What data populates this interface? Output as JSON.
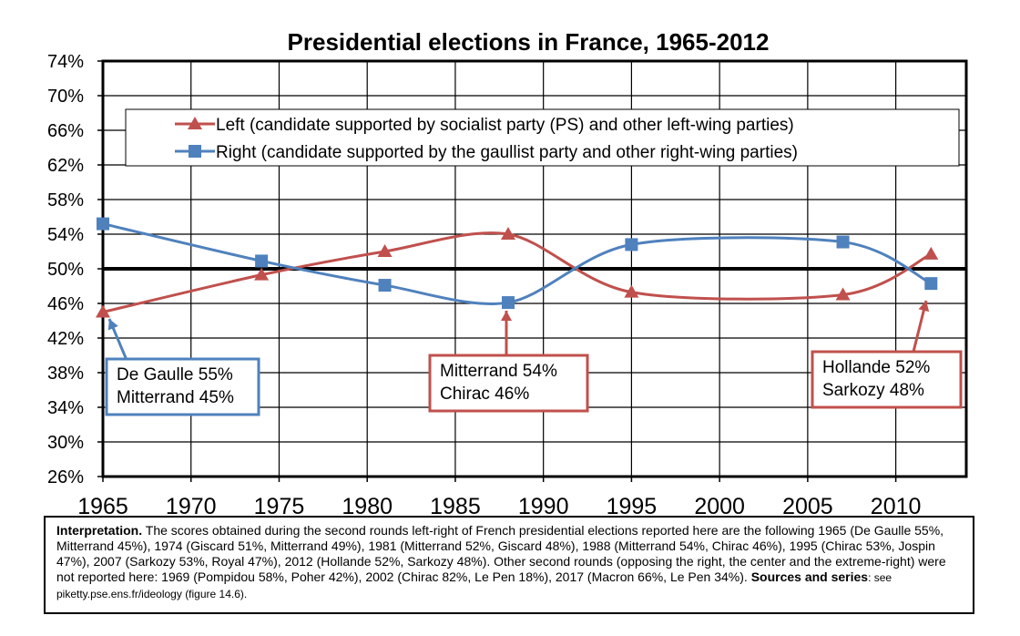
{
  "chart_data": {
    "type": "line",
    "title": "Presidential elections in France, 1965-2012",
    "xlabel": "",
    "ylabel": "",
    "xlim": [
      1965,
      2014
    ],
    "ylim": [
      26,
      74
    ],
    "x_ticks": [
      "1965",
      "1970",
      "1975",
      "1980",
      "1985",
      "1990",
      "1995",
      "2000",
      "2005",
      "2010"
    ],
    "y_ticks": [
      "74%",
      "70%",
      "66%",
      "62%",
      "58%",
      "54%",
      "50%",
      "46%",
      "42%",
      "38%",
      "34%",
      "30%",
      "26%"
    ],
    "grid": true,
    "legend_position": "top",
    "reference_line": 50,
    "series": [
      {
        "name": "Left (candidate supported by socialist party (PS) and other left-wing parties)",
        "color": "#c0504d",
        "marker": "triangle",
        "x": [
          1965,
          1974,
          1981,
          1988,
          1995,
          2007,
          2012
        ],
        "values": [
          45,
          49.3,
          52,
          54,
          47.3,
          47,
          51.7
        ]
      },
      {
        "name": "Right (candidate supported by the gaullist party and other right-wing parties)",
        "color": "#4f81bd",
        "marker": "square",
        "x": [
          1965,
          1974,
          1981,
          1988,
          1995,
          2007,
          2012
        ],
        "values": [
          55.2,
          50.9,
          48.1,
          46.1,
          52.8,
          53.1,
          48.3
        ]
      }
    ],
    "annotations": [
      {
        "id": "ann-1965",
        "lines": [
          "De Gaulle 55%",
          "Mitterrand 45%"
        ],
        "color": "#4f81bd"
      },
      {
        "id": "ann-1988",
        "lines": [
          "Mitterrand 54%",
          "Chirac 46%"
        ],
        "color": "#c0504d"
      },
      {
        "id": "ann-2012",
        "lines": [
          "Hollande 52%",
          "Sarkozy 48%"
        ],
        "color": "#c0504d"
      }
    ]
  },
  "note": {
    "label": "Interpretation.",
    "text": " The scores obtained during the second rounds left-right of French presidential elections reported here are the following 1965 (De Gaulle 55%, Mitterrand 45%), 1974 (Giscard 51%, Mitterrand 49%), 1981 (Mitterrand 52%, Giscard 48%), 1988 (Mitterrand 54%, Chirac 46%), 1995 (Chirac 53%, Jospin 47%), 2007 (Sarkozy 53%, Royal 47%), 2012 (Hollande 52%, Sarkozy 48%). Other second rounds (opposing the right, the center and the extreme-right) were not reported here: 1969 (Pompidou 58%, Poher 42%), 2002 (Chirac 82%, Le Pen 18%), 2017 (Macron 66%, Le Pen 34%). ",
    "sources_label": "Sources and series",
    "sources_text": ": see piketty.pse.ens.fr/ideology (figure 14.6)."
  }
}
